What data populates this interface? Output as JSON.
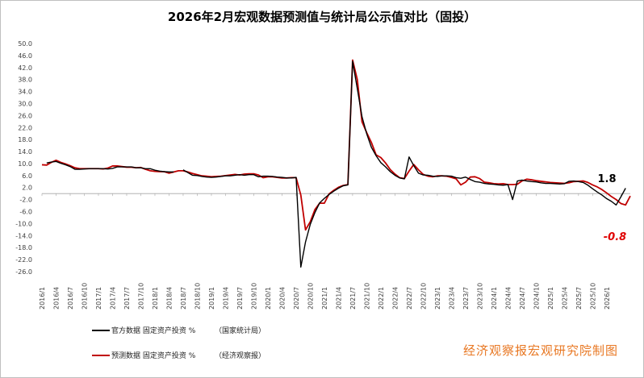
{
  "chart_data": {
    "type": "line",
    "title": "2026年2月宏观数据预测值与统计局公示值对比（固投）",
    "ylim": [
      -26,
      50
    ],
    "y_ticks": [
      50.0,
      46.0,
      42.0,
      38.0,
      34.0,
      30.0,
      26.0,
      22.0,
      18.0,
      14.0,
      10.0,
      6.0,
      2.0,
      -2.0,
      -6.0,
      -10.0,
      -14.0,
      -18.0,
      -22.0,
      -26.0
    ],
    "y_tick_labels": [
      "50.0",
      "46.0",
      "42.0",
      "38.0",
      "34.0",
      "30.0",
      "26.0",
      "22.0",
      "18.0",
      "14.0",
      "10.0",
      "6.0",
      "2.0",
      "-2.0",
      "-6.0",
      "-10.0",
      "-14.0",
      "-18.0",
      "-22.0",
      "-26.0"
    ],
    "x_tick_labels": [
      "2016/1",
      "2016/4",
      "2016/7",
      "2016/10",
      "2017/1",
      "2017/4",
      "2017/7",
      "2017/10",
      "2018/1",
      "2018/4",
      "2018/7",
      "2018/10",
      "2019/1",
      "2019/4",
      "2019/7",
      "2019/10",
      "2020/1",
      "2020/4",
      "2020/7",
      "2020/10",
      "2021/1",
      "2021/4",
      "2021/7",
      "2021/10",
      "2022/1",
      "2022/4",
      "2022/7",
      "2022/10",
      "2023/1",
      "2023/4",
      "2023/7",
      "2023/10",
      "2024/1",
      "2024/4",
      "2024/7",
      "2024/10",
      "2025/1",
      "2025/4",
      "2025/7",
      "2025/10",
      "2026/1"
    ],
    "grid": false,
    "legend_position": "bottom-left",
    "series": [
      {
        "name": "官方数据 固定资产投资 %",
        "source": "（国家统计局）",
        "color": "#000000",
        "values": [
          null,
          10.2,
          10.5,
          10.7,
          10.1,
          9.6,
          9.0,
          8.1,
          8.1,
          8.2,
          8.3,
          8.3,
          8.3,
          8.3,
          8.2,
          8.4,
          8.9,
          8.9,
          8.9,
          8.9,
          8.6,
          8.6,
          8.3,
          8.3,
          7.8,
          7.5,
          7.3,
          7.2,
          7.2,
          null,
          7.9,
          7.0,
          6.1,
          6.0,
          5.7,
          5.5,
          5.4,
          5.5,
          5.7,
          5.9,
          5.9,
          6.1,
          6.3,
          6.1,
          6.3,
          6.3,
          5.6,
          5.8,
          5.8,
          5.7,
          5.5,
          5.4,
          5.2,
          5.2,
          5.4,
          -24.5,
          -16.1,
          -10.3,
          -6.3,
          -3.1,
          -1.6,
          -0.3,
          0.8,
          1.8,
          2.6,
          2.9,
          44.1,
          35.0,
          25.6,
          19.9,
          15.4,
          12.6,
          10.3,
          8.9,
          7.3,
          6.1,
          5.2,
          4.9,
          12.2,
          9.3,
          6.8,
          6.2,
          6.1,
          5.8,
          5.7,
          5.9,
          5.9,
          5.8,
          5.3,
          5.1,
          5.5,
          4.7,
          4.0,
          3.8,
          3.4,
          3.2,
          3.1,
          2.9,
          2.8,
          3.0,
          -2.0,
          4.2,
          4.5,
          4.2,
          4.0,
          3.9,
          3.6,
          3.4,
          3.4,
          3.3,
          3.2,
          3.3,
          4.1,
          4.2,
          4.0,
          3.7,
          2.8,
          1.6,
          0.5,
          -0.5,
          -1.7,
          -2.6,
          -3.8,
          -1.1,
          1.8
        ],
        "annotation": "1.8"
      },
      {
        "name": "预测数据 固定资产投资 %",
        "source": "（经济观察报）",
        "color": "#c00000",
        "values": [
          9.6,
          9.5,
          10.4,
          11.1,
          10.4,
          9.9,
          9.3,
          8.6,
          8.3,
          8.3,
          8.3,
          8.3,
          8.3,
          8.2,
          8.5,
          9.2,
          9.2,
          9.0,
          8.8,
          8.8,
          8.6,
          8.7,
          8.1,
          7.6,
          7.4,
          7.3,
          7.3,
          6.8,
          7.2,
          7.6,
          7.6,
          7.2,
          6.7,
          6.3,
          5.9,
          5.8,
          5.6,
          5.7,
          5.8,
          6.0,
          6.2,
          6.4,
          6.2,
          6.5,
          6.6,
          6.6,
          6.2,
          5.3,
          5.6,
          5.6,
          5.4,
          5.2,
          5.2,
          5.3,
          5.3,
          -0.5,
          -12.1,
          -9.4,
          -5.3,
          -3.2,
          -3.2,
          -0.1,
          1.1,
          2.1,
          2.7,
          3.0,
          44.5,
          38.0,
          23.9,
          20.3,
          17.0,
          12.9,
          12.0,
          10.2,
          8.0,
          6.5,
          5.3,
          5.0,
          7.5,
          9.7,
          7.9,
          6.4,
          5.8,
          5.6,
          5.9,
          5.9,
          5.8,
          5.4,
          4.9,
          2.9,
          3.8,
          5.5,
          5.6,
          5.0,
          3.8,
          3.6,
          3.3,
          3.2,
          3.3,
          3.0,
          3.0,
          3.1,
          4.2,
          4.8,
          4.6,
          4.3,
          4.1,
          3.9,
          3.7,
          3.6,
          3.5,
          3.4,
          3.6,
          4.0,
          4.1,
          4.2,
          3.7,
          2.9,
          2.2,
          1.3,
          0.2,
          -1.0,
          -2.0,
          -3.3,
          -3.8,
          -0.8
        ],
        "annotation": "-0.8"
      }
    ]
  },
  "watermark": "经济观察报宏观研究院制图"
}
